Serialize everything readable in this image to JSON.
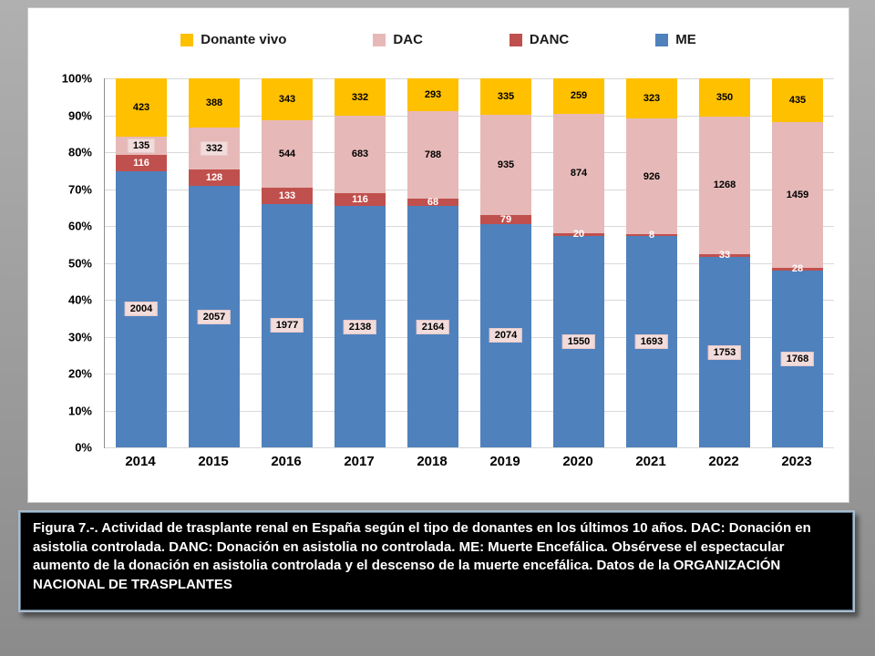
{
  "chart_data": {
    "type": "bar",
    "stacked": "percent",
    "title": "",
    "xlabel": "",
    "ylabel": "",
    "ylim": [
      0,
      100
    ],
    "grid": true,
    "legend_position": "top",
    "categories": [
      "2014",
      "2015",
      "2016",
      "2017",
      "2018",
      "2019",
      "2020",
      "2021",
      "2022",
      "2023"
    ],
    "series": [
      {
        "name": "ME",
        "key": "me",
        "color": "#4f81bd",
        "values": [
          2004,
          2057,
          1977,
          2138,
          2164,
          2074,
          1550,
          1693,
          1753,
          1768
        ]
      },
      {
        "name": "DANC",
        "key": "danc",
        "color": "#c0504d",
        "values": [
          116,
          128,
          133,
          116,
          68,
          79,
          20,
          8,
          33,
          28
        ]
      },
      {
        "name": "DAC",
        "key": "dac",
        "color": "#e6b9b8",
        "values": [
          135,
          332,
          544,
          683,
          788,
          935,
          874,
          926,
          1268,
          1459
        ]
      },
      {
        "name": "Donante vivo",
        "key": "vivo",
        "color": "#ffc000",
        "values": [
          423,
          388,
          343,
          332,
          293,
          335,
          259,
          323,
          350,
          435
        ]
      }
    ],
    "legend": [
      {
        "label": "Donante vivo",
        "color": "#ffc000"
      },
      {
        "label": "DAC",
        "color": "#e6b9b8"
      },
      {
        "label": "DANC",
        "color": "#c0504d"
      },
      {
        "label": "ME",
        "color": "#4f81bd"
      }
    ],
    "y_ticks": [
      "100%",
      "90%",
      "80%",
      "70%",
      "60%",
      "50%",
      "40%",
      "30%",
      "20%",
      "10%",
      "0%"
    ]
  },
  "caption": {
    "text": "Figura 7.-. Actividad de trasplante renal en España según el tipo de donantes en los últimos 10 años. DAC: Donación en asistolia controlada. DANC: Donación en asistolia no controlada. ME: Muerte Encefálica. Obsérvese el espectacular aumento de la donación en asistolia controlada y el descenso de la muerte encefálica. Datos de la ORGANIZACIÓN NACIONAL DE TRASPLANTES"
  },
  "colors": {
    "label_box_fill": "#f2dcdb",
    "gridline": "#d9d9d9",
    "panel_background": "#ffffff",
    "caption_background": "#000000",
    "caption_text": "#ffffff"
  }
}
